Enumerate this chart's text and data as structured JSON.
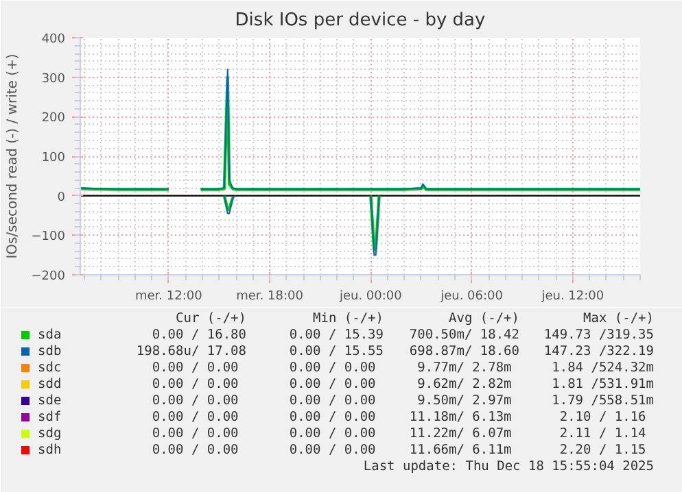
{
  "chart_data": {
    "type": "line",
    "title": "Disk IOs per device - by day",
    "ylabel": "IOs/second read (-) / write (+)",
    "xlim": [
      "2025-12-17T06:45",
      "2025-12-18T16:00"
    ],
    "xticks": [
      {
        "value": "2025-12-17T12:00",
        "label": "mer. 12:00"
      },
      {
        "value": "2025-12-17T18:00",
        "label": "mer. 18:00"
      },
      {
        "value": "2025-12-18T00:00",
        "label": "jeu. 00:00"
      },
      {
        "value": "2025-12-18T06:00",
        "label": "jeu. 06:00"
      },
      {
        "value": "2025-12-18T12:00",
        "label": "jeu. 12:00"
      }
    ],
    "ylim": [
      -200,
      400
    ],
    "yticks": [
      -200,
      -100,
      0,
      100,
      200,
      300,
      400
    ],
    "grid": true,
    "legend": "bottom",
    "ref_lines": [
      {
        "axis": "y",
        "value": 0,
        "color": "#000000"
      }
    ],
    "series": [
      {
        "name": "sda",
        "color": "#00cc00",
        "x": [
          "2025-12-17T06:48",
          "2025-12-17T07:30",
          "2025-12-17T09:00",
          "2025-12-17T11:00",
          "2025-12-17T12:00",
          "2025-12-17T13:00",
          "2025-12-17T13:54",
          "2025-12-17T15:00",
          "2025-12-17T15:18",
          "2025-12-17T15:30",
          "2025-12-17T15:36",
          "2025-12-17T15:48",
          "2025-12-17T16:00",
          "2025-12-17T17:00",
          "2025-12-17T18:00",
          "2025-12-17T20:00",
          "2025-12-17T22:00",
          "2025-12-18T00:00",
          "2025-12-18T00:18",
          "2025-12-18T02:00",
          "2025-12-18T03:00",
          "2025-12-18T03:06",
          "2025-12-18T03:18",
          "2025-12-18T05:00",
          "2025-12-18T08:00",
          "2025-12-18T11:00",
          "2025-12-18T14:00",
          "2025-12-18T16:00"
        ],
        "values": [
          18,
          17,
          16,
          16,
          16,
          null,
          16,
          16,
          18,
          300,
          30,
          18,
          16,
          16,
          16,
          16,
          16,
          16,
          16,
          16,
          18,
          25,
          16,
          16,
          16,
          16,
          16,
          16
        ]
      },
      {
        "name": "sdb",
        "color": "#0066b3",
        "x": [
          "2025-12-17T06:48",
          "2025-12-17T07:30",
          "2025-12-17T09:00",
          "2025-12-17T11:00",
          "2025-12-17T12:00",
          "2025-12-17T13:00",
          "2025-12-17T13:54",
          "2025-12-17T15:00",
          "2025-12-17T15:18",
          "2025-12-17T15:30",
          "2025-12-17T15:36",
          "2025-12-17T15:48",
          "2025-12-17T16:00",
          "2025-12-17T17:00",
          "2025-12-17T18:00",
          "2025-12-17T20:00",
          "2025-12-17T22:00",
          "2025-12-18T00:00",
          "2025-12-18T00:18",
          "2025-12-18T02:00",
          "2025-12-18T03:00",
          "2025-12-18T03:06",
          "2025-12-18T03:18",
          "2025-12-18T05:00",
          "2025-12-18T08:00",
          "2025-12-18T11:00",
          "2025-12-18T14:00",
          "2025-12-18T16:00"
        ],
        "values": [
          20,
          18,
          17,
          17,
          17,
          null,
          17,
          17,
          20,
          320,
          40,
          20,
          17,
          17,
          17,
          17,
          17,
          17,
          17,
          17,
          20,
          30,
          17,
          17,
          17,
          17,
          17,
          17
        ]
      },
      {
        "name": "sdc",
        "color": "#ff8000"
      },
      {
        "name": "sdd",
        "color": "#ffcc00"
      },
      {
        "name": "sde",
        "color": "#330099"
      },
      {
        "name": "sdf",
        "color": "#990099"
      },
      {
        "name": "sdg",
        "color": "#ccff00"
      },
      {
        "name": "sdh",
        "color": "#ff0000"
      },
      {
        "color": "#00cc00",
        "x": [
          "2025-12-17T15:18",
          "2025-12-17T15:30",
          "2025-12-17T15:36",
          "2025-12-17T15:48",
          "2025-12-17T20:00",
          "2025-12-18T00:00",
          "2025-12-18T00:12",
          "2025-12-18T00:18",
          "2025-12-18T00:30"
        ],
        "values": [
          0,
          -35,
          -35,
          -5,
          null,
          0,
          -135,
          -135,
          0
        ]
      },
      {
        "color": "#0066b3",
        "x": [
          "2025-12-17T15:18",
          "2025-12-17T15:30",
          "2025-12-17T15:36",
          "2025-12-17T15:48",
          "2025-12-17T16:00",
          "2025-12-17T20:00",
          "2025-12-18T00:00",
          "2025-12-18T00:12",
          "2025-12-18T00:18",
          "2025-12-18T00:30"
        ],
        "values": [
          0,
          -45,
          -45,
          -5,
          0,
          null,
          0,
          -150,
          -150,
          0
        ]
      }
    ],
    "annotations": [
      "Cur (-/+)",
      "Min (-/+)",
      "Avg (-/+)",
      "Max (-/+)",
      "0.00 / 16.80",
      "0.00 / 15.39",
      "700.50m/ 18.42",
      "149.73 /319.35",
      "198.68u/ 17.08",
      "0.00 / 15.55",
      "698.87m/ 18.60",
      "147.23 /322.19",
      "0.00 /  0.00",
      "0.00 /  0.00",
      "9.77m/  2.78m",
      "1.84 /524.32m",
      "0.00 /  0.00",
      "0.00 /  0.00",
      "9.62m/  2.82m",
      "1.81 /531.91m",
      "0.00 /  0.00",
      "0.00 /  0.00",
      "9.50m/  2.97m",
      "1.79 /558.51m",
      "0.00 /  0.00",
      "0.00 /  0.00",
      "11.18m/  6.13m",
      "2.10 /  1.16",
      "0.00 /  0.00",
      "0.00 /  0.00",
      "11.22m/  6.07m",
      "2.11 /  1.14",
      "0.00 /  0.00",
      "0.00 /  0.00",
      "11.66m/  6.11m",
      "2.20 /  1.15",
      "Last update: Thu Dec 18 15:55:04 2025"
    ]
  }
}
